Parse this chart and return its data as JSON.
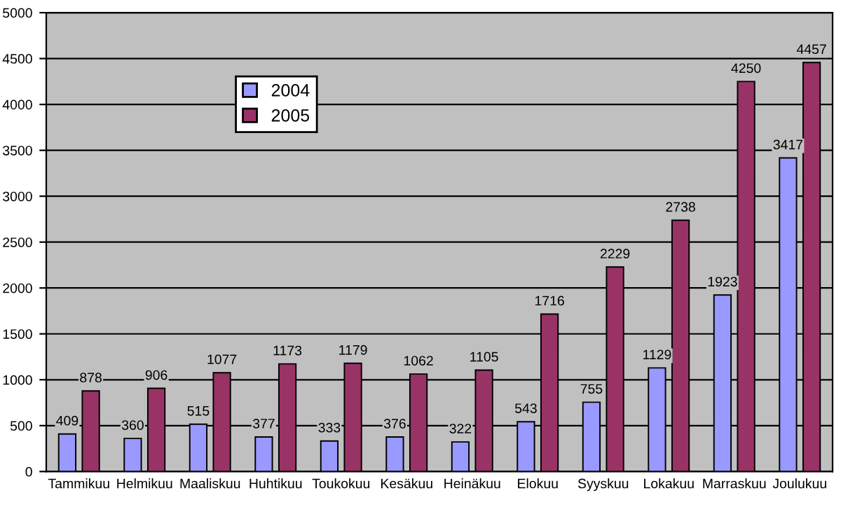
{
  "chart_data": {
    "type": "bar",
    "categories": [
      "Tammikuu",
      "Helmikuu",
      "Maaliskuu",
      "Huhtikuu",
      "Toukokuu",
      "Kesäkuu",
      "Heinäkuu",
      "Elokuu",
      "Syyskuu",
      "Lokakuu",
      "Marraskuu",
      "Joulukuu"
    ],
    "series": [
      {
        "name": "2004",
        "color": "#9999ff",
        "values": [
          409,
          360,
          515,
          377,
          333,
          376,
          322,
          543,
          755,
          1129,
          1923,
          3417
        ]
      },
      {
        "name": "2005",
        "color": "#993366",
        "values": [
          878,
          906,
          1077,
          1173,
          1179,
          1062,
          1105,
          1716,
          2229,
          2738,
          4250,
          4457
        ]
      }
    ],
    "ylim": [
      0,
      5000
    ],
    "yticks": [
      0,
      500,
      1000,
      1500,
      2000,
      2500,
      3000,
      3500,
      4000,
      4500,
      5000
    ],
    "grid": "y",
    "legend": "top left",
    "data_labels": true
  }
}
